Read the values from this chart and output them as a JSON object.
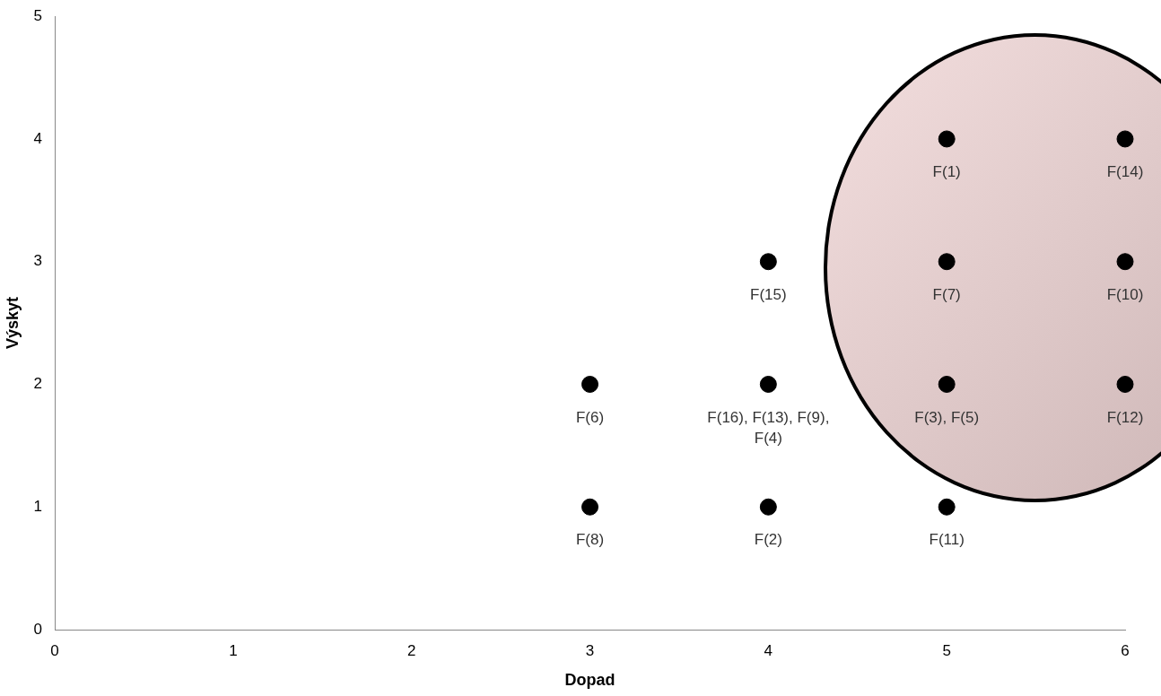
{
  "chart_data": {
    "type": "scatter",
    "xlabel": "Dopad",
    "ylabel": "Výskyt",
    "x": [
      5,
      6,
      4,
      5,
      6,
      3,
      4,
      5,
      6,
      3,
      4,
      5
    ],
    "values": [
      4,
      4,
      3,
      3,
      3,
      2,
      2,
      2,
      2,
      1,
      1,
      1
    ],
    "color": "#000000",
    "value_labels": [
      "F(1)",
      "F(14)",
      "F(15)",
      "F(7)",
      "F(10)",
      "F(6)",
      "F(16), F(13), F(9), F(4)",
      "F(3), F(5)",
      "F(12)",
      "F(8)",
      "F(2)",
      "F(11)"
    ],
    "xlim": [
      0,
      6
    ],
    "xticks": [
      0,
      1,
      2,
      3,
      4,
      5,
      6
    ],
    "ylim": [
      0,
      5
    ],
    "yticks": [
      0,
      1,
      2,
      3,
      4,
      5
    ],
    "grid": false,
    "legend": false,
    "marker": "circle"
  }
}
